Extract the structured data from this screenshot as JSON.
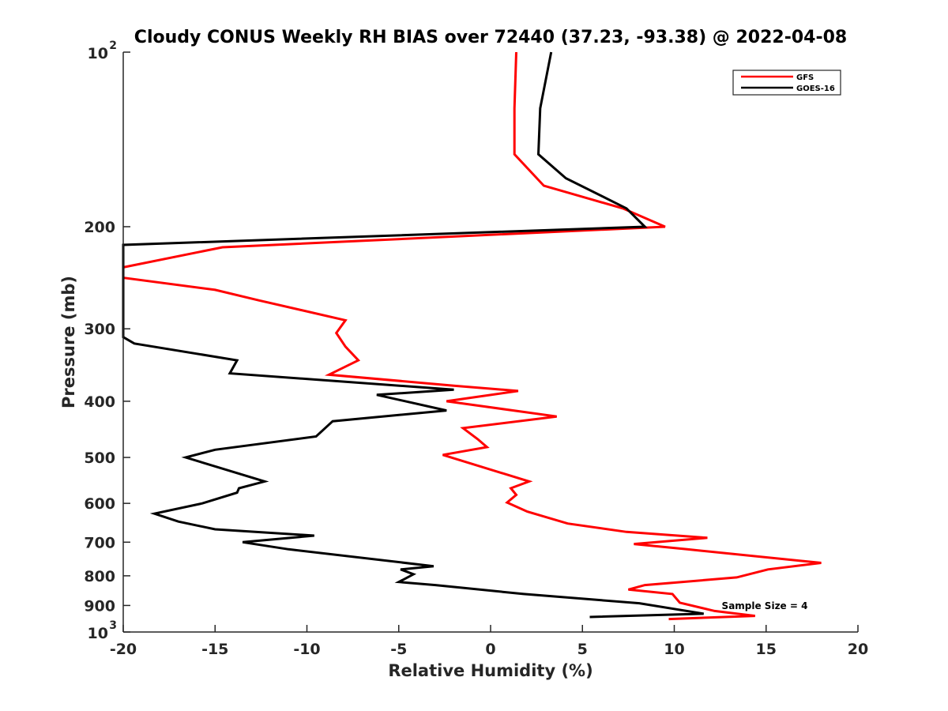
{
  "chart_data": {
    "type": "line",
    "title": "Cloudy CONUS Weekly RH BIAS over 72440 (37.23, -93.38) @ 2022-04-08",
    "xlabel": "Relative Humidity (%)",
    "ylabel": "Pressure (mb)",
    "xlim": [
      -20,
      20
    ],
    "ylim": [
      100,
      1000
    ],
    "y_scale": "log",
    "y_reversed": true,
    "grid": false,
    "legend_position": "top-right",
    "x_ticks": [
      -20,
      -15,
      -10,
      -5,
      0,
      5,
      10,
      15,
      20
    ],
    "x_tick_labels": [
      "-20",
      "-15",
      "-10",
      "-5",
      "0",
      "5",
      "10",
      "15",
      "20"
    ],
    "y_ticks": [
      100,
      200,
      300,
      400,
      500,
      600,
      700,
      800,
      900,
      1000
    ],
    "y_tick_labels": [
      {
        "base": "10",
        "exp": "2"
      },
      {
        "base": "200",
        "exp": ""
      },
      {
        "base": "300",
        "exp": ""
      },
      {
        "base": "400",
        "exp": ""
      },
      {
        "base": "500",
        "exp": ""
      },
      {
        "base": "600",
        "exp": ""
      },
      {
        "base": "700",
        "exp": ""
      },
      {
        "base": "800",
        "exp": ""
      },
      {
        "base": "900",
        "exp": ""
      },
      {
        "base": "10",
        "exp": "3"
      }
    ],
    "annotation": "Sample Size = 4",
    "series": [
      {
        "name": "GFS",
        "color": "#ff0000",
        "points": [
          [
            1.4,
            100
          ],
          [
            1.3,
            125
          ],
          [
            1.3,
            150
          ],
          [
            2.9,
            170
          ],
          [
            7.2,
            186
          ],
          [
            9.5,
            200
          ],
          [
            -14.6,
            217
          ],
          [
            -20.0,
            235
          ],
          [
            -20.0,
            245
          ],
          [
            -15.0,
            257
          ],
          [
            -12.6,
            268
          ],
          [
            -7.9,
            290
          ],
          [
            -8.4,
            305
          ],
          [
            -7.9,
            322
          ],
          [
            -7.2,
            340
          ],
          [
            -8.8,
            360
          ],
          [
            -2.0,
            376
          ],
          [
            1.5,
            384
          ],
          [
            -2.4,
            400
          ],
          [
            3.6,
            425
          ],
          [
            -1.5,
            445
          ],
          [
            -0.7,
            465
          ],
          [
            -0.2,
            480
          ],
          [
            -2.6,
            495
          ],
          [
            2.1,
            550
          ],
          [
            1.1,
            565
          ],
          [
            1.4,
            580
          ],
          [
            0.9,
            598
          ],
          [
            2.0,
            620
          ],
          [
            4.2,
            650
          ],
          [
            7.4,
            672
          ],
          [
            11.8,
            688
          ],
          [
            7.8,
            705
          ],
          [
            10.7,
            720
          ],
          [
            18.0,
            760
          ],
          [
            15.1,
            780
          ],
          [
            13.4,
            805
          ],
          [
            8.4,
            830
          ],
          [
            7.5,
            845
          ],
          [
            9.9,
            860
          ],
          [
            10.3,
            890
          ],
          [
            12.2,
            920
          ],
          [
            14.4,
            938
          ],
          [
            9.7,
            950
          ]
        ]
      },
      {
        "name": "GOES-16",
        "color": "#000000",
        "points": [
          [
            3.3,
            100
          ],
          [
            2.7,
            125
          ],
          [
            2.6,
            150
          ],
          [
            4.1,
            165
          ],
          [
            7.4,
            186
          ],
          [
            8.4,
            200
          ],
          [
            -20.0,
            215
          ],
          [
            -20.0,
            310
          ],
          [
            -19.4,
            318
          ],
          [
            -13.8,
            340
          ],
          [
            -14.2,
            358
          ],
          [
            -2.0,
            382
          ],
          [
            -6.2,
            390
          ],
          [
            -2.4,
            415
          ],
          [
            -8.6,
            433
          ],
          [
            -9.5,
            460
          ],
          [
            -15.0,
            485
          ],
          [
            -16.6,
            500
          ],
          [
            -12.3,
            550
          ],
          [
            -13.7,
            565
          ],
          [
            -13.8,
            575
          ],
          [
            -15.7,
            600
          ],
          [
            -18.3,
            625
          ],
          [
            -17.0,
            645
          ],
          [
            -15.0,
            665
          ],
          [
            -9.6,
            682
          ],
          [
            -13.5,
            700
          ],
          [
            -11.0,
            720
          ],
          [
            -3.1,
            770
          ],
          [
            -4.9,
            780
          ],
          [
            -4.2,
            795
          ],
          [
            -5.0,
            820
          ],
          [
            -3.0,
            830
          ],
          [
            1.8,
            860
          ],
          [
            8.1,
            892
          ],
          [
            11.6,
            930
          ],
          [
            5.4,
            942
          ]
        ]
      }
    ]
  }
}
